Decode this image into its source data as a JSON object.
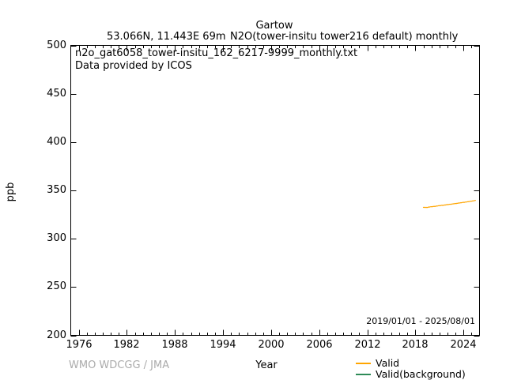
{
  "header": {
    "station": "Gartow",
    "location": "53.066N, 11.443E 69m",
    "parameter": "N2O(tower-insitu tower216 default) monthly"
  },
  "plot_annotations": {
    "info_line1": "n2o_gat6058_tower-insitu_162_6217-9999_monthly.txt",
    "info_line2": "Data provided by ICOS",
    "date_range": "2019/01/01 - 2025/08/01"
  },
  "axes": {
    "x_label": "Year",
    "y_label": "ppb"
  },
  "footer": {
    "credit": "WMO WDCGG / JMA"
  },
  "colors": {
    "valid": "#ffa500",
    "valid_background": "#2e8b57",
    "frame": "#000000",
    "credit_gray": "#ababab"
  },
  "legend": {
    "items": [
      {
        "label": "Valid",
        "color": "#ffa500"
      },
      {
        "label": "Valid(background)",
        "color": "#2e8b57"
      }
    ]
  },
  "chart_data": {
    "type": "line",
    "title": "Gartow",
    "subtitle": "53.066N, 11.443E 69m    N2O(tower-insitu tower216 default) monthly",
    "xlabel": "Year",
    "ylabel": "ppb",
    "xlim": [
      1975,
      2026
    ],
    "ylim": [
      200,
      500
    ],
    "xticks_major": [
      1976,
      1982,
      1988,
      1994,
      2000,
      2006,
      2012,
      2018,
      2024
    ],
    "xtick_minor_step": 1,
    "yticks_major": [
      200,
      250,
      300,
      350,
      400,
      450,
      500
    ],
    "grid": false,
    "legend_position": "below-right",
    "annotation_date_range": "2019/01/01 - 2025/08/01",
    "series": [
      {
        "name": "Valid",
        "color": "#ffa500",
        "cadence": "monthly",
        "x": [
          2019.0,
          2019.083,
          2019.167,
          2019.25,
          2019.333,
          2019.417,
          2019.5,
          2019.583,
          2019.667,
          2019.75,
          2019.833,
          2019.917,
          2020.0,
          2020.083,
          2020.167,
          2020.25,
          2020.333,
          2020.417,
          2020.5,
          2020.583,
          2020.667,
          2020.75,
          2020.833,
          2020.917,
          2021.0,
          2021.083,
          2021.167,
          2021.25,
          2021.333,
          2021.417,
          2021.5,
          2021.583,
          2021.667,
          2021.75,
          2021.833,
          2021.917,
          2022.0,
          2022.083,
          2022.167,
          2022.25,
          2022.333,
          2022.417,
          2022.5,
          2022.583,
          2022.667,
          2022.75,
          2022.833,
          2022.917,
          2023.0,
          2023.083,
          2023.167,
          2023.25,
          2023.333,
          2023.417,
          2023.5,
          2023.583,
          2023.667,
          2023.75,
          2023.833,
          2023.917,
          2024.0,
          2024.083,
          2024.167,
          2024.25,
          2024.333,
          2024.417,
          2024.5,
          2024.583,
          2024.667,
          2024.75,
          2024.833,
          2024.917,
          2025.0,
          2025.083,
          2025.167,
          2025.25,
          2025.333,
          2025.417,
          2025.5
        ],
        "y": [
          332.5,
          332.3,
          332.6,
          332.4,
          332.2,
          332.5,
          332.3,
          332.6,
          332.8,
          332.7,
          333.0,
          333.1,
          333.2,
          333.0,
          333.3,
          333.5,
          333.3,
          333.6,
          333.4,
          333.7,
          333.9,
          333.8,
          334.0,
          334.2,
          334.3,
          334.1,
          334.4,
          334.6,
          334.4,
          334.7,
          334.5,
          334.8,
          335.0,
          334.9,
          335.1,
          335.3,
          335.2,
          335.5,
          335.3,
          335.6,
          335.8,
          335.5,
          335.7,
          336.0,
          335.9,
          336.2,
          336.1,
          336.4,
          336.5,
          336.3,
          336.7,
          336.6,
          336.9,
          336.8,
          337.1,
          337.0,
          337.3,
          337.2,
          337.5,
          337.6,
          337.7,
          337.5,
          337.8,
          338.0,
          337.9,
          338.1,
          338.3,
          338.2,
          338.5,
          338.4,
          338.7,
          338.8,
          338.9,
          339.0,
          339.2,
          339.1,
          339.4,
          339.5,
          339.6
        ]
      },
      {
        "name": "Valid(background)",
        "color": "#2e8b57",
        "cadence": "monthly",
        "x": [],
        "y": []
      }
    ]
  }
}
